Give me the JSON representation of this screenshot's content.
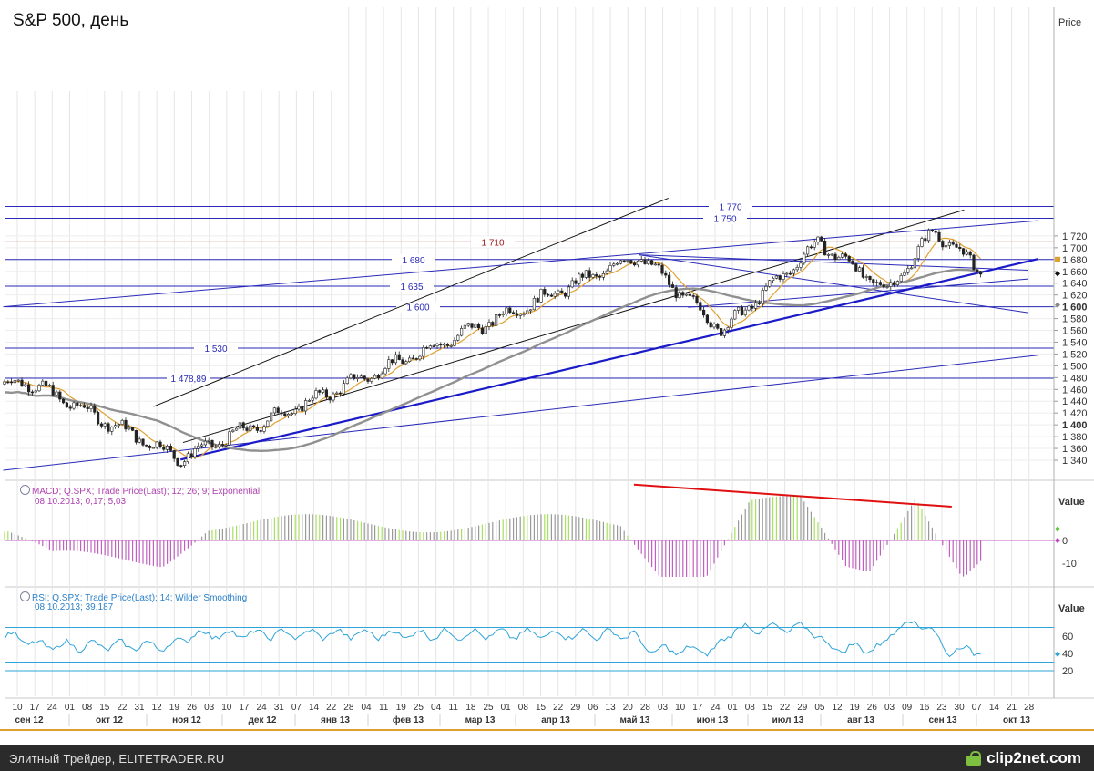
{
  "chart_data": [
    {
      "type": "candlestick",
      "title": "S&P 500, день",
      "ylabel": "Price",
      "ylim": [
        1325,
        1780
      ],
      "y_ticks": [
        "1 340",
        "1 360",
        "1 380",
        "1 400",
        "1 420",
        "1 440",
        "1 460",
        "1 480",
        "1 500",
        "1 520",
        "1 540",
        "1 560",
        "1 580",
        "1 600",
        "1 620",
        "1 640",
        "1 660",
        "1 680",
        "1 700",
        "1 720"
      ],
      "bold_ticks": [
        "1 400",
        "1 600"
      ],
      "horizontal_levels": [
        {
          "value": 1770,
          "label": "1 770",
          "color": "#2a2ab8"
        },
        {
          "value": 1750,
          "label": "1 750",
          "color": "#2a2ab8"
        },
        {
          "value": 1710,
          "label": "1 710",
          "color": "#a01818"
        },
        {
          "value": 1680,
          "label": "1 680",
          "color": "#2a2ab8"
        },
        {
          "value": 1635,
          "label": "1 635",
          "color": "#2a2ab8"
        },
        {
          "value": 1600,
          "label": "1 600",
          "color": "#2a2ab8"
        },
        {
          "value": 1530,
          "label": "1 530",
          "color": "#2a2ab8"
        },
        {
          "value": 1478.89,
          "label": "1 478,89",
          "color": "#2a2ab8"
        }
      ],
      "key_prices": [
        {
          "date": "2012-09-14",
          "value": 1475
        },
        {
          "date": "2012-11-16",
          "value": 1343
        },
        {
          "date": "2013-05-21",
          "value": 1687
        },
        {
          "date": "2013-06-24",
          "value": 1560
        },
        {
          "date": "2013-08-02",
          "value": 1709
        },
        {
          "date": "2013-08-30",
          "value": 1627
        },
        {
          "date": "2013-09-18",
          "value": 1730
        },
        {
          "date": "2013-10-08",
          "value": 1656
        }
      ],
      "series": [
        {
          "name": "MA fast",
          "color": "#e0a030"
        },
        {
          "name": "MA slow",
          "color": "#909090"
        }
      ],
      "grid": true
    },
    {
      "type": "histogram",
      "title": "MACD; Q.SPX; Trade Price(Last);  12; 26; 9; Exponential",
      "readout": "08.10.2013; 0,17; 5,03",
      "ylabel": "Value",
      "ylim": [
        -17,
        17
      ],
      "y_ticks": [
        "0",
        "-10"
      ],
      "annotation": "divergence trend line (red) from 2013-05-21 to 2013-09-23"
    },
    {
      "type": "line",
      "title": "RSI; Q.SPX; Trade Price(Last);  14; Wilder Smoothing",
      "readout": "08.10.2013; 39,187",
      "ylabel": "Value",
      "ylim": [
        10,
        82
      ],
      "y_ticks": [
        "60",
        "40",
        "20"
      ],
      "levels": [
        70,
        30,
        20
      ],
      "last_value": 39.187
    }
  ],
  "x_axis": {
    "day_labels": [
      "10",
      "17",
      "24",
      "01",
      "08",
      "15",
      "22",
      "31",
      "12",
      "19",
      "26",
      "03",
      "10",
      "17",
      "24",
      "31",
      "07",
      "14",
      "22",
      "28",
      "04",
      "11",
      "19",
      "25",
      "04",
      "11",
      "18",
      "25",
      "01",
      "08",
      "15",
      "22",
      "29",
      "06",
      "13",
      "20",
      "28",
      "03",
      "10",
      "17",
      "24",
      "01",
      "08",
      "15",
      "22",
      "29",
      "05",
      "12",
      "19",
      "26",
      "03",
      "09",
      "16",
      "23",
      "30",
      "07",
      "14",
      "21",
      "28"
    ],
    "month_labels": [
      "сен 12",
      "окт 12",
      "ноя 12",
      "дек 12",
      "янв 13",
      "фев 13",
      "мар 13",
      "апр 13",
      "май 13",
      "июн 13",
      "июл 13",
      "авг 13",
      "сен 13",
      "окт 13"
    ]
  },
  "footer": {
    "caption": "Элитный Трейдер, ELITETRADER.RU",
    "logo": "clip2net.com"
  },
  "colors": {
    "channel": "#111111",
    "level": "#2a2ab8",
    "support_bold": "#1a1ac8",
    "macd_red_line": "#e01010",
    "macd_pos": "#9a9a9a",
    "macd_neg": "#c060c0",
    "macd_light": "#a8e060",
    "rsi": "#2fa4d8"
  }
}
